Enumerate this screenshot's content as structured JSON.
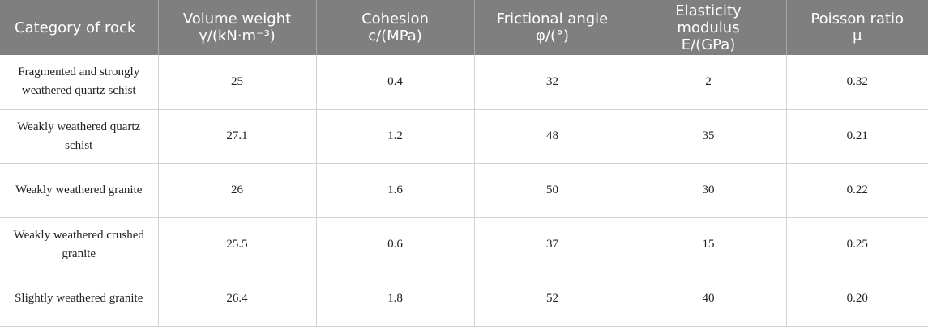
{
  "table": {
    "header": [
      "Category of rock",
      "Volume weight γ/(kN·m⁻³)",
      "Cohesion c/(MPa)",
      "Frictional angle φ/(°)",
      "Elasticity modulus E/(GPa)",
      "Poisson ratio μ"
    ],
    "rows": [
      [
        "Fragmented and strongly weathered quartz schist",
        "25",
        "0.4",
        "32",
        "2",
        "0.32"
      ],
      [
        "Weakly weathered quartz schist",
        "27.1",
        "1.2",
        "48",
        "35",
        "0.21"
      ],
      [
        "Weakly weathered granite",
        "26",
        "1.6",
        "50",
        "30",
        "0.22"
      ],
      [
        "Weakly weathered crushed granite",
        "25.5",
        "0.6",
        "37",
        "15",
        "0.25"
      ],
      [
        "Slightly weathered granite",
        "26.4",
        "1.8",
        "52",
        "40",
        "0.20"
      ]
    ]
  }
}
